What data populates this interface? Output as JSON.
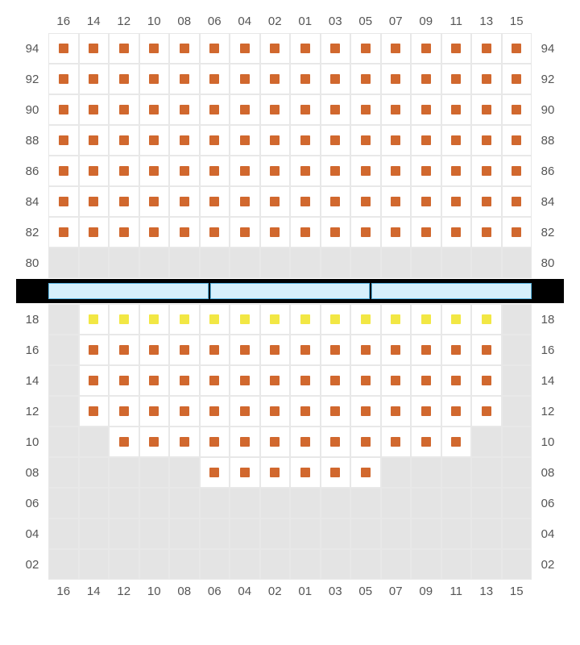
{
  "diagram": {
    "type": "seating-chart",
    "background_color": "#ffffff",
    "empty_cell_color": "#e4e4e4",
    "filled_cell_color": "#ffffff",
    "grid_border_color": "#e8e8e8",
    "label_color": "#555555",
    "label_fontsize": 15,
    "seat_colors": {
      "orange": "#d1682e",
      "yellow": "#f2e744"
    },
    "stage": {
      "bg": "#000000",
      "seg_fill": "#d6f0fb",
      "seg_border": "#5ab4e0",
      "segments": 3
    },
    "columns": [
      "16",
      "14",
      "12",
      "10",
      "08",
      "06",
      "04",
      "02",
      "01",
      "03",
      "05",
      "07",
      "09",
      "11",
      "13",
      "15"
    ],
    "upper_section": {
      "rows": [
        "94",
        "92",
        "90",
        "88",
        "86",
        "84",
        "82",
        "80"
      ],
      "seats": {
        "94": {
          "cols": [
            "16",
            "14",
            "12",
            "10",
            "08",
            "06",
            "04",
            "02",
            "01",
            "03",
            "05",
            "07",
            "09",
            "11",
            "13",
            "15"
          ],
          "color": "orange"
        },
        "92": {
          "cols": [
            "16",
            "14",
            "12",
            "10",
            "08",
            "06",
            "04",
            "02",
            "01",
            "03",
            "05",
            "07",
            "09",
            "11",
            "13",
            "15"
          ],
          "color": "orange"
        },
        "90": {
          "cols": [
            "16",
            "14",
            "12",
            "10",
            "08",
            "06",
            "04",
            "02",
            "01",
            "03",
            "05",
            "07",
            "09",
            "11",
            "13",
            "15"
          ],
          "color": "orange"
        },
        "88": {
          "cols": [
            "16",
            "14",
            "12",
            "10",
            "08",
            "06",
            "04",
            "02",
            "01",
            "03",
            "05",
            "07",
            "09",
            "11",
            "13",
            "15"
          ],
          "color": "orange"
        },
        "86": {
          "cols": [
            "16",
            "14",
            "12",
            "10",
            "08",
            "06",
            "04",
            "02",
            "01",
            "03",
            "05",
            "07",
            "09",
            "11",
            "13",
            "15"
          ],
          "color": "orange"
        },
        "84": {
          "cols": [
            "16",
            "14",
            "12",
            "10",
            "08",
            "06",
            "04",
            "02",
            "01",
            "03",
            "05",
            "07",
            "09",
            "11",
            "13",
            "15"
          ],
          "color": "orange"
        },
        "82": {
          "cols": [
            "16",
            "14",
            "12",
            "10",
            "08",
            "06",
            "04",
            "02",
            "01",
            "03",
            "05",
            "07",
            "09",
            "11",
            "13",
            "15"
          ],
          "color": "orange"
        },
        "80": {
          "cols": [],
          "color": "orange"
        }
      }
    },
    "lower_section": {
      "rows": [
        "18",
        "16",
        "14",
        "12",
        "10",
        "08",
        "06",
        "04",
        "02"
      ],
      "seats": {
        "18": {
          "cols": [
            "14",
            "12",
            "10",
            "08",
            "06",
            "04",
            "02",
            "01",
            "03",
            "05",
            "07",
            "09",
            "11",
            "13"
          ],
          "color": "yellow"
        },
        "16": {
          "cols": [
            "14",
            "12",
            "10",
            "08",
            "06",
            "04",
            "02",
            "01",
            "03",
            "05",
            "07",
            "09",
            "11",
            "13"
          ],
          "color": "orange"
        },
        "14": {
          "cols": [
            "14",
            "12",
            "10",
            "08",
            "06",
            "04",
            "02",
            "01",
            "03",
            "05",
            "07",
            "09",
            "11",
            "13"
          ],
          "color": "orange"
        },
        "12": {
          "cols": [
            "14",
            "12",
            "10",
            "08",
            "06",
            "04",
            "02",
            "01",
            "03",
            "05",
            "07",
            "09",
            "11",
            "13"
          ],
          "color": "orange"
        },
        "10": {
          "cols": [
            "12",
            "10",
            "08",
            "06",
            "04",
            "02",
            "01",
            "03",
            "05",
            "07",
            "09",
            "11"
          ],
          "color": "orange"
        },
        "08": {
          "cols": [
            "06",
            "04",
            "02",
            "01",
            "03",
            "05"
          ],
          "color": "orange"
        },
        "06": {
          "cols": [],
          "color": "orange"
        },
        "04": {
          "cols": [],
          "color": "orange"
        },
        "02": {
          "cols": [],
          "color": "orange"
        }
      }
    }
  }
}
